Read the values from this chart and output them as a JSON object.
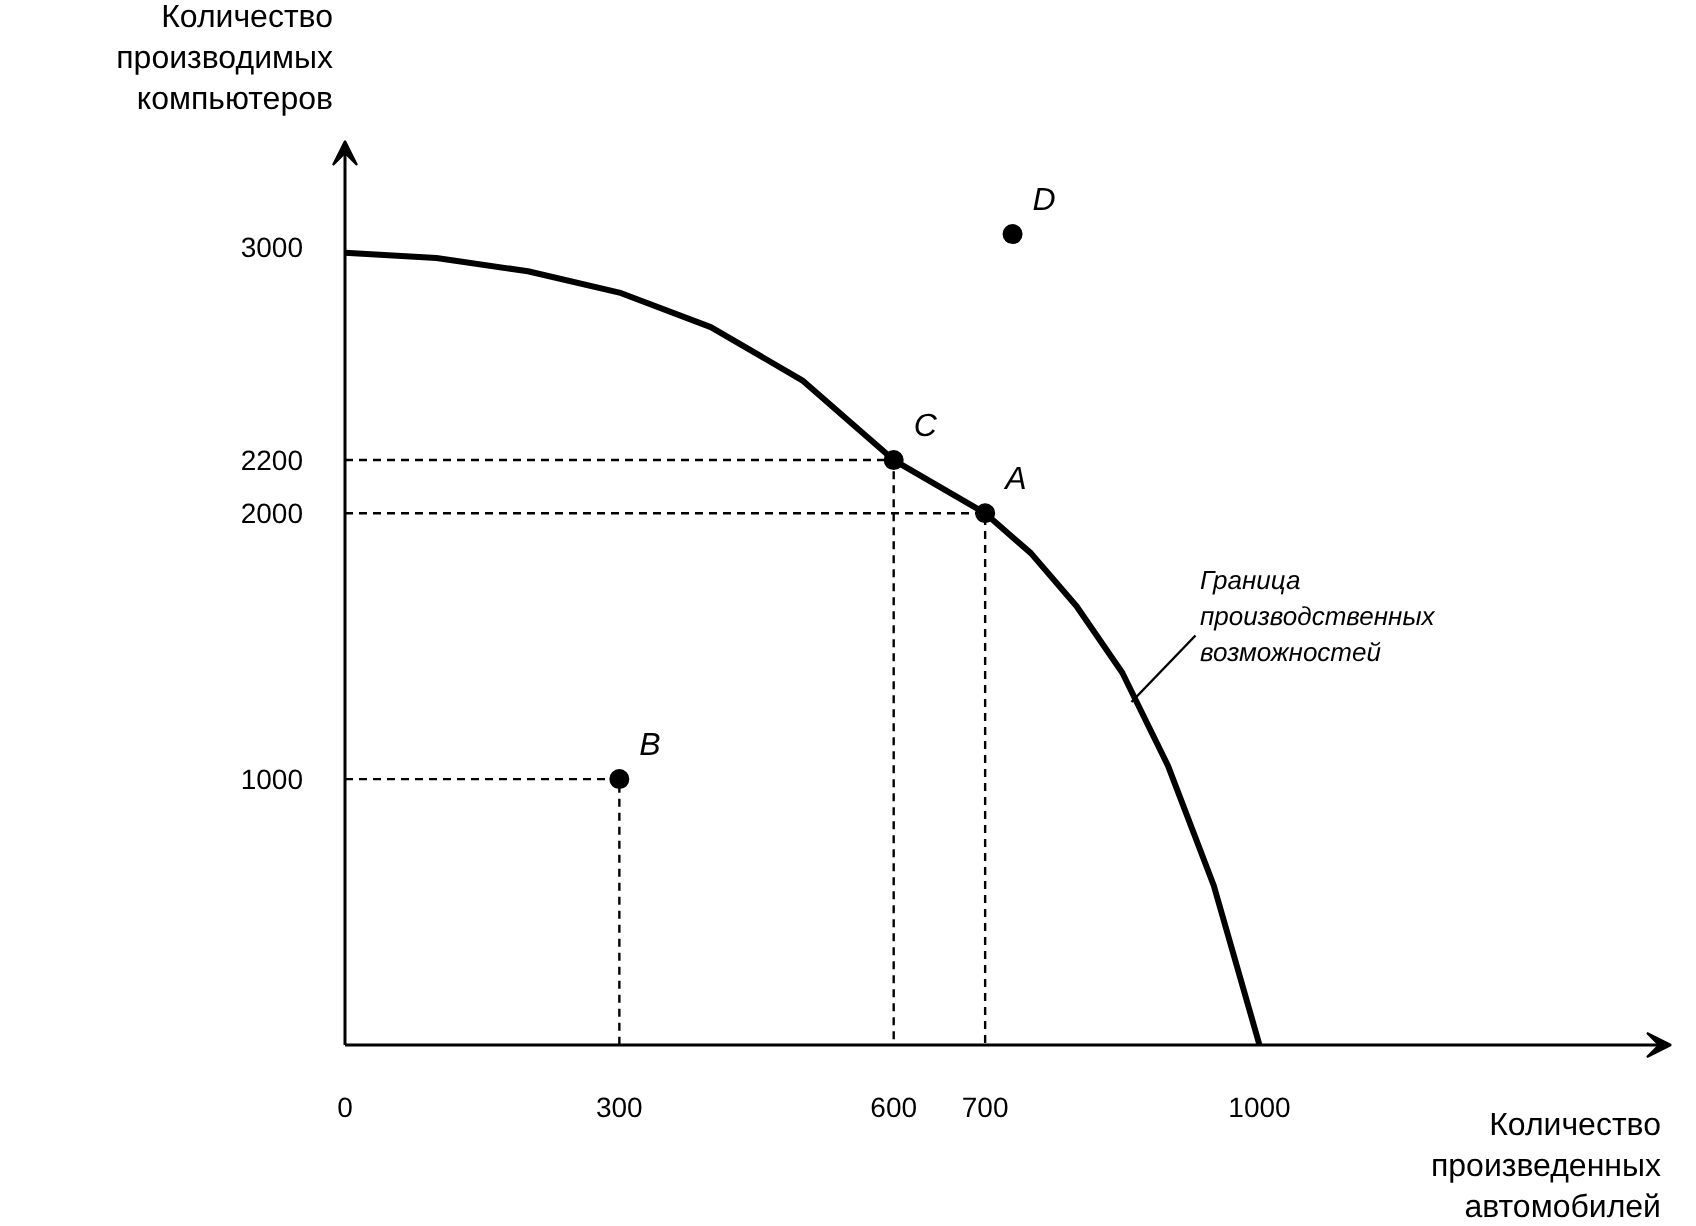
{
  "chart_data": {
    "type": "line",
    "xlabel": "Количество\nпроизведенных\nавтомобилей",
    "ylabel": "Количество\nпроизводимых\nкомпьютеров",
    "xlim": [
      0,
      1450
    ],
    "ylim": [
      0,
      3400
    ],
    "xticks": [
      0,
      300,
      600,
      700,
      1000
    ],
    "yticks": [
      1000,
      2000,
      2200,
      3000
    ],
    "grid": false,
    "series": [
      {
        "color": "#000000",
        "x": [
          0,
          100,
          200,
          300,
          400,
          500,
          600,
          700,
          750,
          800,
          850,
          900,
          950,
          1000
        ],
        "values": [
          2980,
          2960,
          2910,
          2830,
          2700,
          2500,
          2200,
          2000,
          1850,
          1650,
          1400,
          1050,
          600,
          0
        ]
      },
      {
        "type": "line",
        "color": "#000000",
        "line_style": "dashed",
        "x": [
          0,
          600,
          600
        ],
        "values": [
          2200,
          2200,
          0
        ]
      },
      {
        "type": "line",
        "color": "#000000",
        "line_style": "dashed",
        "x": [
          0,
          700,
          700
        ],
        "values": [
          2000,
          2000,
          0
        ]
      },
      {
        "type": "line",
        "color": "#000000",
        "line_style": "dashed",
        "x": [
          0,
          300,
          300
        ],
        "values": [
          1000,
          1000,
          0
        ]
      },
      {
        "type": "scatter",
        "color": "#000000",
        "marker": "circle",
        "x": [
          700,
          300,
          600,
          730
        ],
        "values": [
          2000,
          1000,
          2200,
          3050
        ]
      }
    ],
    "annotations": [
      {
        "text": "A",
        "x": 700,
        "y": 2000
      },
      {
        "text": "B",
        "x": 300,
        "y": 1000
      },
      {
        "text": "C",
        "x": 600,
        "y": 2200
      },
      {
        "text": "D",
        "x": 730,
        "y": 3050
      },
      {
        "text": "Граница\nпроизводственных\nвозможностей",
        "x": 860,
        "y": 1290
      }
    ]
  }
}
